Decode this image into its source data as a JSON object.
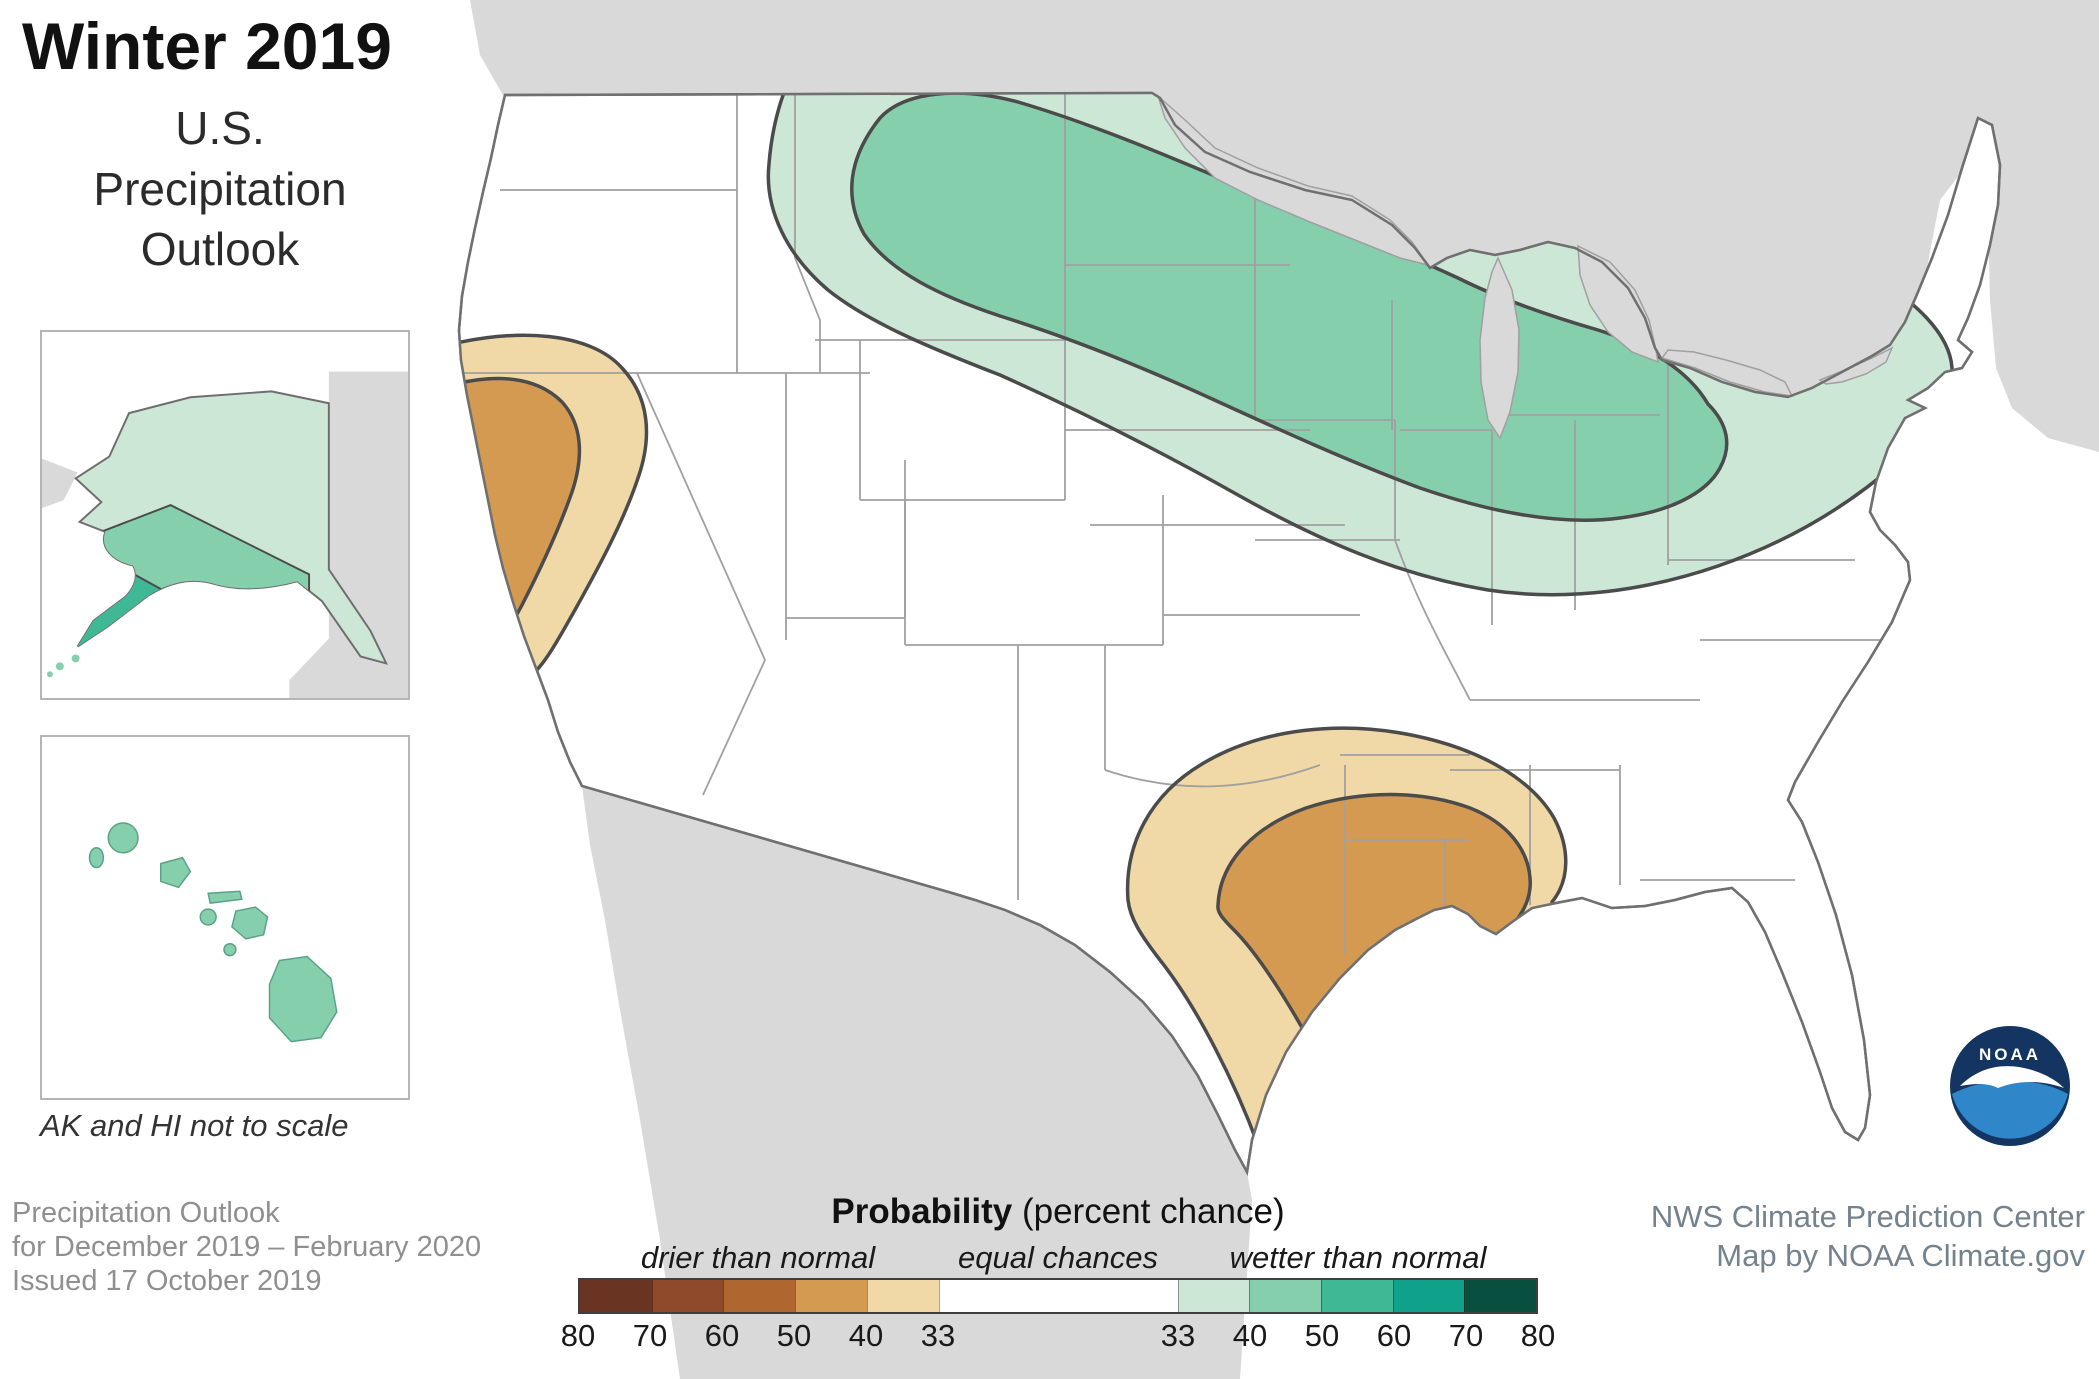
{
  "title": "Winter 2019",
  "subtitle_lines": [
    "U.S.",
    "Precipitation",
    "Outlook"
  ],
  "inset_note": "AK and HI not to scale",
  "footer_left": {
    "line1": "Precipitation Outlook",
    "line2": "for December 2019 – February 2020",
    "line3": "Issued 17 October 2019"
  },
  "footer_right": {
    "line1": "NWS Climate Prediction Center",
    "line2": "Map by NOAA Climate.gov"
  },
  "legend": {
    "heading_bold": "Probability",
    "heading_rest": " (percent chance)",
    "label_drier": "drier than normal",
    "label_equal": "equal chances",
    "label_wetter": "wetter than normal",
    "drier_ticks": [
      "80",
      "70",
      "60",
      "50",
      "40",
      "33"
    ],
    "wetter_ticks": [
      "33",
      "40",
      "50",
      "60",
      "70",
      "80"
    ],
    "drier_colors": [
      "#6a3423",
      "#8e4a2b",
      "#b0672f",
      "#d49a52",
      "#f0d9a6"
    ],
    "equal_color": "#ffffff",
    "wetter_colors": [
      "#cde7d7",
      "#85cfac",
      "#3fb896",
      "#0fa189",
      "#084f40"
    ]
  },
  "logo": {
    "text": "NOAA"
  },
  "colors": {
    "land-gray": "#d9d9d9",
    "state-line": "#a0a0a0",
    "conus-outline": "#707070",
    "blob-outline": "#4b4b4b",
    "green-light": "#cde7d7",
    "green-mid": "#85cfac",
    "green-dark": "#3fb896",
    "tan-light": "#f0d9a6",
    "tan-mid": "#d49a52",
    "text-gray": "#8f8f8f",
    "text-slate": "#74828e",
    "noaa-navy": "#143561",
    "noaa-blue": "#2f86c8"
  },
  "map_regions": [
    {
      "id": "wetter-33-40",
      "color": "#cde7d7"
    },
    {
      "id": "wetter-40-50",
      "color": "#85cfac"
    },
    {
      "id": "drier-33-40-california",
      "color": "#f0d9a6"
    },
    {
      "id": "drier-40-50-california",
      "color": "#d49a52"
    },
    {
      "id": "drier-33-40-gulf",
      "color": "#f0d9a6"
    },
    {
      "id": "drier-40-50-gulf",
      "color": "#d49a52"
    }
  ]
}
